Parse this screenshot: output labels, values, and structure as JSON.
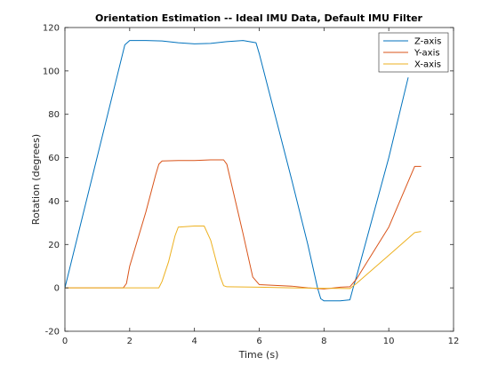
{
  "chart_data": {
    "type": "line",
    "title": "Orientation Estimation -- Ideal IMU Data, Default IMU Filter",
    "xlabel": "Time (s)",
    "ylabel": "Rotation (degrees)",
    "xlim": [
      0,
      12
    ],
    "ylim": [
      -20,
      120
    ],
    "xticks": [
      0,
      2,
      4,
      6,
      8,
      10,
      12
    ],
    "yticks": [
      -20,
      0,
      20,
      40,
      60,
      80,
      100,
      120
    ],
    "grid": false,
    "legend_position": "top-right",
    "series": [
      {
        "name": "Z-axis",
        "color": "#0072BD",
        "x": [
          0,
          1.85,
          2.0,
          2.5,
          3.0,
          3.5,
          4.0,
          4.5,
          5.0,
          5.5,
          5.9,
          6.0,
          7.0,
          7.5,
          7.8,
          7.9,
          8.0,
          8.5,
          8.8,
          8.9,
          9.0,
          10.0,
          10.6
        ],
        "y": [
          0,
          112,
          114,
          114,
          113.8,
          113,
          112.5,
          112.7,
          113.5,
          114,
          113,
          108,
          50,
          20,
          0,
          -5,
          -6,
          -6,
          -5.5,
          0,
          5,
          60,
          97
        ]
      },
      {
        "name": "Y-axis",
        "color": "#D95319",
        "x": [
          0,
          1.8,
          1.9,
          2.0,
          2.5,
          2.8,
          2.9,
          3.0,
          3.5,
          4.0,
          4.5,
          4.9,
          5.0,
          5.5,
          5.8,
          6.0,
          7.0,
          7.5,
          8.0,
          8.5,
          8.8,
          9.0,
          10.0,
          10.8,
          11.0
        ],
        "y": [
          0,
          0,
          2,
          10,
          35,
          52,
          57,
          58.5,
          58.7,
          58.7,
          59,
          59,
          57,
          25,
          5,
          1.5,
          0.8,
          0,
          -0.5,
          0.3,
          0.5,
          4,
          28,
          56,
          56
        ]
      },
      {
        "name": "X-axis",
        "color": "#EDB120",
        "x": [
          0,
          2.9,
          3.0,
          3.2,
          3.4,
          3.5,
          4.0,
          4.3,
          4.5,
          4.8,
          4.9,
          5.0,
          6.0,
          7.0,
          8.0,
          8.8,
          9.0,
          10.0,
          10.8,
          11.0
        ],
        "y": [
          0,
          0,
          3,
          12,
          24,
          28,
          28.5,
          28.5,
          22,
          5,
          1,
          0.5,
          0.3,
          0,
          -0.2,
          -0.3,
          2,
          15,
          25.5,
          26
        ]
      }
    ]
  }
}
